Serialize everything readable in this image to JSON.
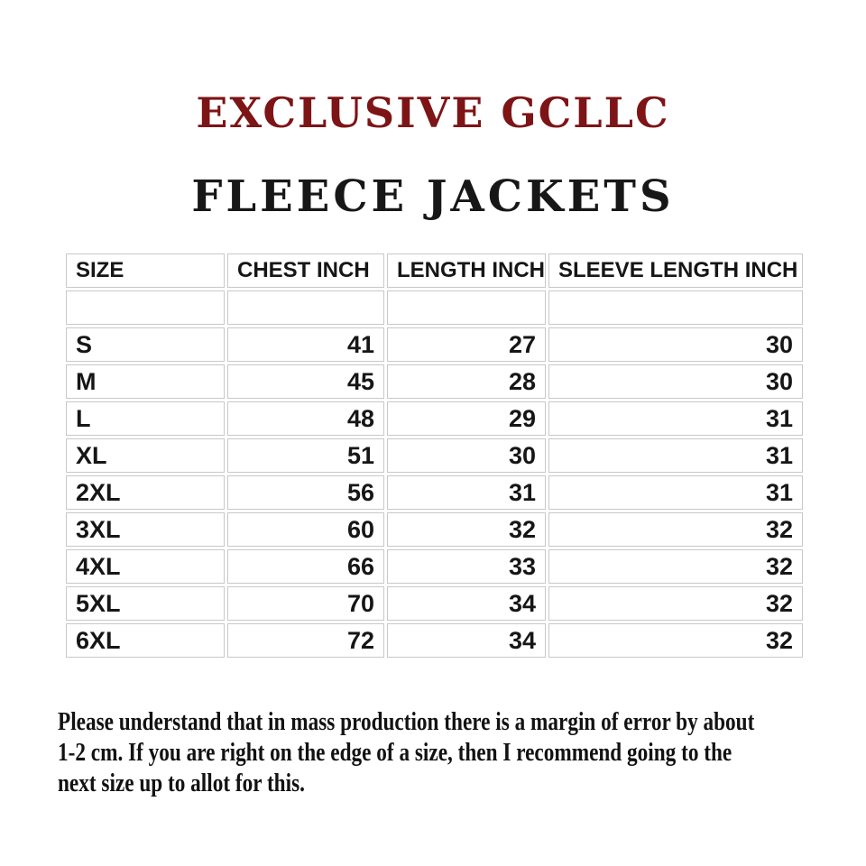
{
  "header": {
    "brand": "EXCLUSIVE GCLLC",
    "product": "FLEECE JACKETS"
  },
  "colors": {
    "brand_red": "#7d1416",
    "text_black": "#161616",
    "table_border": "#c8c8c8",
    "background": "#ffffff"
  },
  "table": {
    "columns": [
      "SIZE",
      "CHEST INCH",
      "LENGTH INCH",
      "SLEEVE LENGTH INCH"
    ],
    "rows": [
      {
        "size": "S",
        "chest": "41",
        "length": "27",
        "sleeve": "30"
      },
      {
        "size": "M",
        "chest": "45",
        "length": "28",
        "sleeve": "30"
      },
      {
        "size": "L",
        "chest": "48",
        "length": "29",
        "sleeve": "31"
      },
      {
        "size": "XL",
        "chest": "51",
        "length": "30",
        "sleeve": "31"
      },
      {
        "size": "2XL",
        "chest": "56",
        "length": "31",
        "sleeve": "31"
      },
      {
        "size": "3XL",
        "chest": "60",
        "length": "32",
        "sleeve": "32"
      },
      {
        "size": "4XL",
        "chest": "66",
        "length": "33",
        "sleeve": "32"
      },
      {
        "size": "5XL",
        "chest": "70",
        "length": "34",
        "sleeve": "32"
      },
      {
        "size": "6XL",
        "chest": "72",
        "length": "34",
        "sleeve": "32"
      }
    ]
  },
  "footer": {
    "note_lines": [
      "Please understand that in mass production there is a margin of error by about",
      "1-2 cm. If you are right on the edge of a size, then I recommend going to the",
      "next size up to allot for this."
    ]
  }
}
